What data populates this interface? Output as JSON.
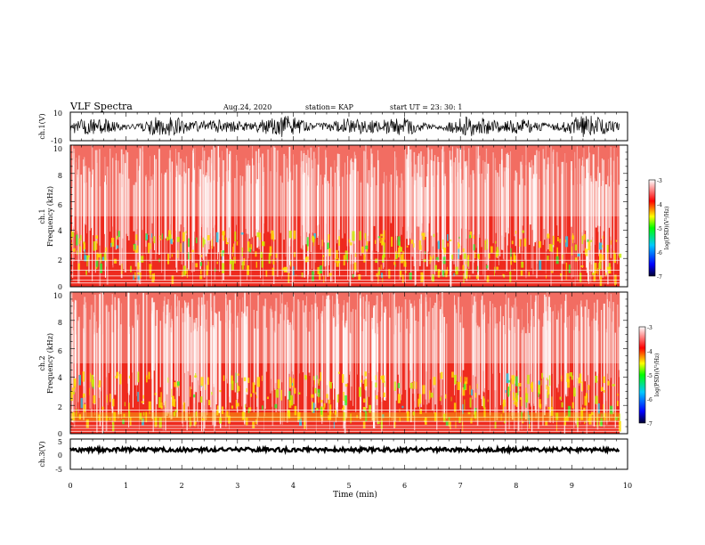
{
  "header": {
    "title": "VLF Spectra",
    "date": "Aug.24, 2020",
    "station": "station= KAP",
    "start": "start  UT  =   23: 30: 1"
  },
  "colors": {
    "background": "#ffffff",
    "waveform": "#000000",
    "spectrogram_base": "#ee2a1e",
    "colormap": [
      "#000030",
      "#0000ff",
      "#00c8ff",
      "#00ff00",
      "#ffff00",
      "#ff0000",
      "#ffffff"
    ]
  },
  "chart_data": [
    {
      "id": "ch1-waveform",
      "type": "line",
      "ylabel": "ch.1(V)",
      "ylim": [
        -10,
        10
      ],
      "yticks": [
        "10",
        "-10"
      ],
      "xlim": [
        0,
        10
      ]
    },
    {
      "id": "ch1-spectrogram",
      "type": "heatmap",
      "ylabel": "ch.1",
      "ylabel2": "Frequency  (kHz)",
      "ylim": [
        0,
        10
      ],
      "yticks": [
        "0",
        "2",
        "4",
        "6",
        "8",
        "10"
      ],
      "xlim": [
        0,
        9.85
      ],
      "colorbar": {
        "range": [
          -7,
          -3
        ],
        "ticks": [
          "-3",
          "-4",
          "-5",
          "-6",
          "-7"
        ],
        "label": "log(PSD)(V²/Hz)"
      }
    },
    {
      "id": "ch2-spectrogram",
      "type": "heatmap",
      "ylabel": "ch.2",
      "ylabel2": "Frequency  (kHz)",
      "ylim": [
        0,
        10
      ],
      "yticks": [
        "0",
        "2",
        "4",
        "6",
        "8",
        "10"
      ],
      "xlim": [
        0,
        9.85
      ],
      "colorbar": {
        "range": [
          -7,
          -3
        ],
        "ticks": [
          "-3",
          "-4",
          "-5",
          "-6",
          "-7"
        ],
        "label": "log(PSD)(V²/Hz)"
      }
    },
    {
      "id": "ch3-waveform",
      "type": "line",
      "ylabel": "ch.3(V)",
      "ylim": [
        -5,
        5
      ],
      "yticks": [
        "5",
        "0",
        "-5"
      ],
      "xlim": [
        0,
        10
      ]
    },
    {
      "id": "time-axis",
      "type": "axis",
      "xlabel": "Time  (min)",
      "xlim": [
        0,
        10
      ],
      "xticks": [
        "0",
        "1",
        "2",
        "3",
        "4",
        "5",
        "6",
        "7",
        "8",
        "9",
        "10"
      ]
    }
  ]
}
